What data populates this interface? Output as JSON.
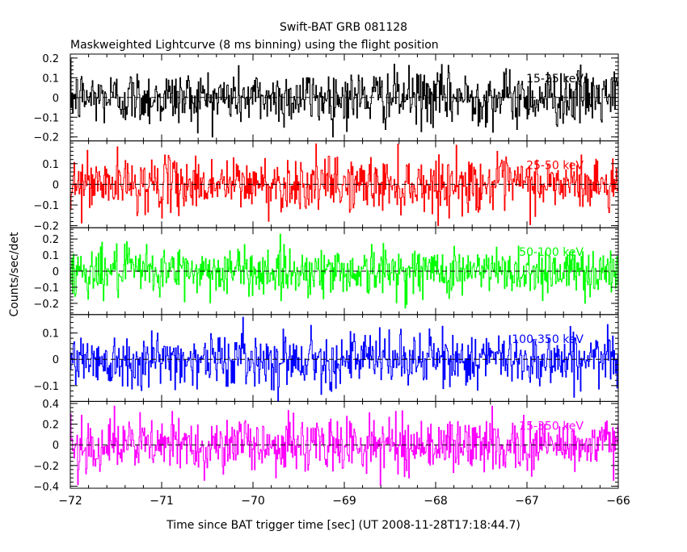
{
  "title": "Swift-BAT GRB 081128",
  "subtitle": "Maskweighted Lightcurve (8 ms binning) using the flight position",
  "ylabel": "Counts/sec/det",
  "xlabel": "Time since BAT trigger time [sec] (UT 2008-11-28T17:18:44.7)",
  "chart_data": {
    "type": "line",
    "x_range": [
      -72,
      -66
    ],
    "x_ticks": [
      -72,
      -71,
      -70,
      -69,
      -68,
      -67,
      -66
    ],
    "x_tick_labels": [
      "−72",
      "−71",
      "−70",
      "−69",
      "−68",
      "−67",
      "−66"
    ],
    "bin_width_sec": 0.008,
    "panels": [
      {
        "name": "15-25 keV",
        "color": "#000000",
        "ylim": [
          -0.22,
          0.22
        ],
        "ticks": [
          -0.2,
          -0.1,
          0,
          0.1,
          0.2
        ],
        "tick_labels": [
          "−0.2",
          "−0.1",
          "0",
          "0.1",
          "0.2"
        ],
        "noise_sigma": 0.07,
        "spike_max": 0.2
      },
      {
        "name": "25-50 keV",
        "color": "#ff0000",
        "ylim": [
          -0.21,
          0.21
        ],
        "ticks": [
          -0.2,
          -0.1,
          0,
          0.1
        ],
        "tick_labels": [
          "−0.2",
          "−0.1",
          "0",
          "0.1"
        ],
        "noise_sigma": 0.065,
        "spike_max": 0.2
      },
      {
        "name": "50-100 keV",
        "color": "#00ff00",
        "ylim": [
          -0.27,
          0.27
        ],
        "ticks": [
          -0.2,
          -0.1,
          0,
          0.1,
          0.2
        ],
        "tick_labels": [
          "−0.2",
          "−0.1",
          "0",
          "0.1",
          "0.2"
        ],
        "noise_sigma": 0.075,
        "spike_max": 0.23
      },
      {
        "name": "100-350 keV",
        "color": "#0000ff",
        "ylim": [
          -0.16,
          0.17
        ],
        "ticks": [
          -0.1,
          0,
          0.1
        ],
        "tick_labels": [
          "−0.1",
          "0",
          "0.1"
        ],
        "noise_sigma": 0.05,
        "spike_max": 0.16
      },
      {
        "name": "15-350 keV",
        "color": "#ff00ff",
        "ylim": [
          -0.42,
          0.42
        ],
        "ticks": [
          -0.4,
          -0.2,
          0,
          0.2,
          0.4
        ],
        "tick_labels": [
          "−0.4",
          "−0.2",
          "0",
          "0.2",
          "0.4"
        ],
        "noise_sigma": 0.13,
        "spike_max": 0.4
      }
    ]
  }
}
